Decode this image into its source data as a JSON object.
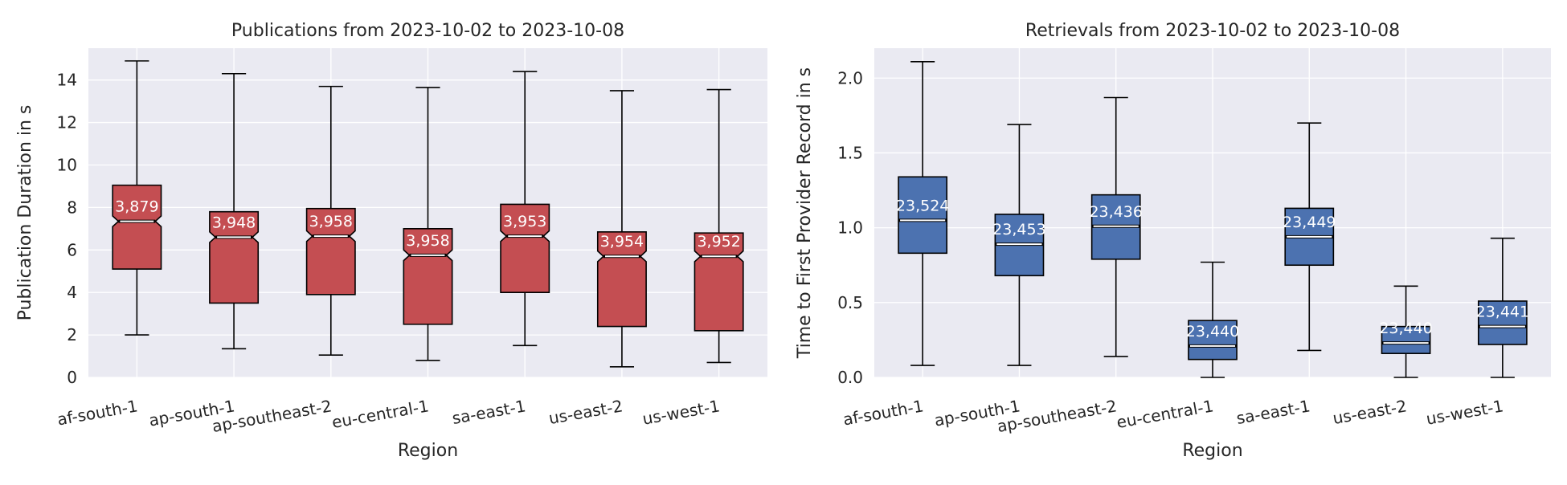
{
  "chart_data": [
    {
      "type": "box",
      "title": "Publications from 2023-10-02 to 2023-10-08",
      "xlabel": "Region",
      "ylabel": "Publication Duration in s",
      "categories": [
        "af-south-1",
        "ap-south-1",
        "ap-southeast-2",
        "eu-central-1",
        "sa-east-1",
        "us-east-2",
        "us-west-1"
      ],
      "ylim": [
        0,
        15.5
      ],
      "yticks": [
        0,
        2,
        4,
        6,
        8,
        10,
        12,
        14
      ],
      "box_color": "#C44E52",
      "notched": true,
      "boxes": [
        {
          "whislo": 2.0,
          "q1": 5.1,
          "med": 7.35,
          "q3": 9.05,
          "whishi": 14.9,
          "count": "3,879"
        },
        {
          "whislo": 1.35,
          "q1": 3.5,
          "med": 6.6,
          "q3": 7.8,
          "whishi": 14.3,
          "count": "3,948"
        },
        {
          "whislo": 1.05,
          "q1": 3.9,
          "med": 6.65,
          "q3": 7.95,
          "whishi": 13.7,
          "count": "3,958"
        },
        {
          "whislo": 0.8,
          "q1": 2.5,
          "med": 5.75,
          "q3": 7.0,
          "whishi": 13.65,
          "count": "3,958"
        },
        {
          "whislo": 1.5,
          "q1": 4.0,
          "med": 6.65,
          "q3": 8.15,
          "whishi": 14.4,
          "count": "3,953"
        },
        {
          "whislo": 0.5,
          "q1": 2.4,
          "med": 5.7,
          "q3": 6.85,
          "whishi": 13.5,
          "count": "3,954"
        },
        {
          "whislo": 0.7,
          "q1": 2.2,
          "med": 5.7,
          "q3": 6.8,
          "whishi": 13.55,
          "count": "3,952"
        }
      ]
    },
    {
      "type": "box",
      "title": "Retrievals from 2023-10-02 to 2023-10-08",
      "xlabel": "Region",
      "ylabel": "Time to First Provider Record in s",
      "categories": [
        "af-south-1",
        "ap-south-1",
        "ap-southeast-2",
        "eu-central-1",
        "sa-east-1",
        "us-east-2",
        "us-west-1"
      ],
      "ylim": [
        0,
        2.2
      ],
      "yticks": [
        0.0,
        0.5,
        1.0,
        1.5,
        2.0
      ],
      "ytick_labels": [
        "0.0",
        "0.5",
        "1.0",
        "1.5",
        "2.0"
      ],
      "box_color": "#4C72B0",
      "notched": false,
      "boxes": [
        {
          "whislo": 0.08,
          "q1": 0.83,
          "med": 1.05,
          "q3": 1.34,
          "whishi": 2.11,
          "count": "23,524"
        },
        {
          "whislo": 0.08,
          "q1": 0.68,
          "med": 0.89,
          "q3": 1.09,
          "whishi": 1.69,
          "count": "23,453"
        },
        {
          "whislo": 0.14,
          "q1": 0.79,
          "med": 1.01,
          "q3": 1.22,
          "whishi": 1.87,
          "count": "23,436"
        },
        {
          "whislo": 0.0,
          "q1": 0.12,
          "med": 0.21,
          "q3": 0.38,
          "whishi": 0.77,
          "count": "23,440"
        },
        {
          "whislo": 0.18,
          "q1": 0.75,
          "med": 0.94,
          "q3": 1.13,
          "whishi": 1.7,
          "count": "23,449"
        },
        {
          "whislo": 0.0,
          "q1": 0.16,
          "med": 0.23,
          "q3": 0.34,
          "whishi": 0.61,
          "count": "23,440"
        },
        {
          "whislo": 0.0,
          "q1": 0.22,
          "med": 0.34,
          "q3": 0.51,
          "whishi": 0.93,
          "count": "23,441"
        }
      ]
    }
  ]
}
